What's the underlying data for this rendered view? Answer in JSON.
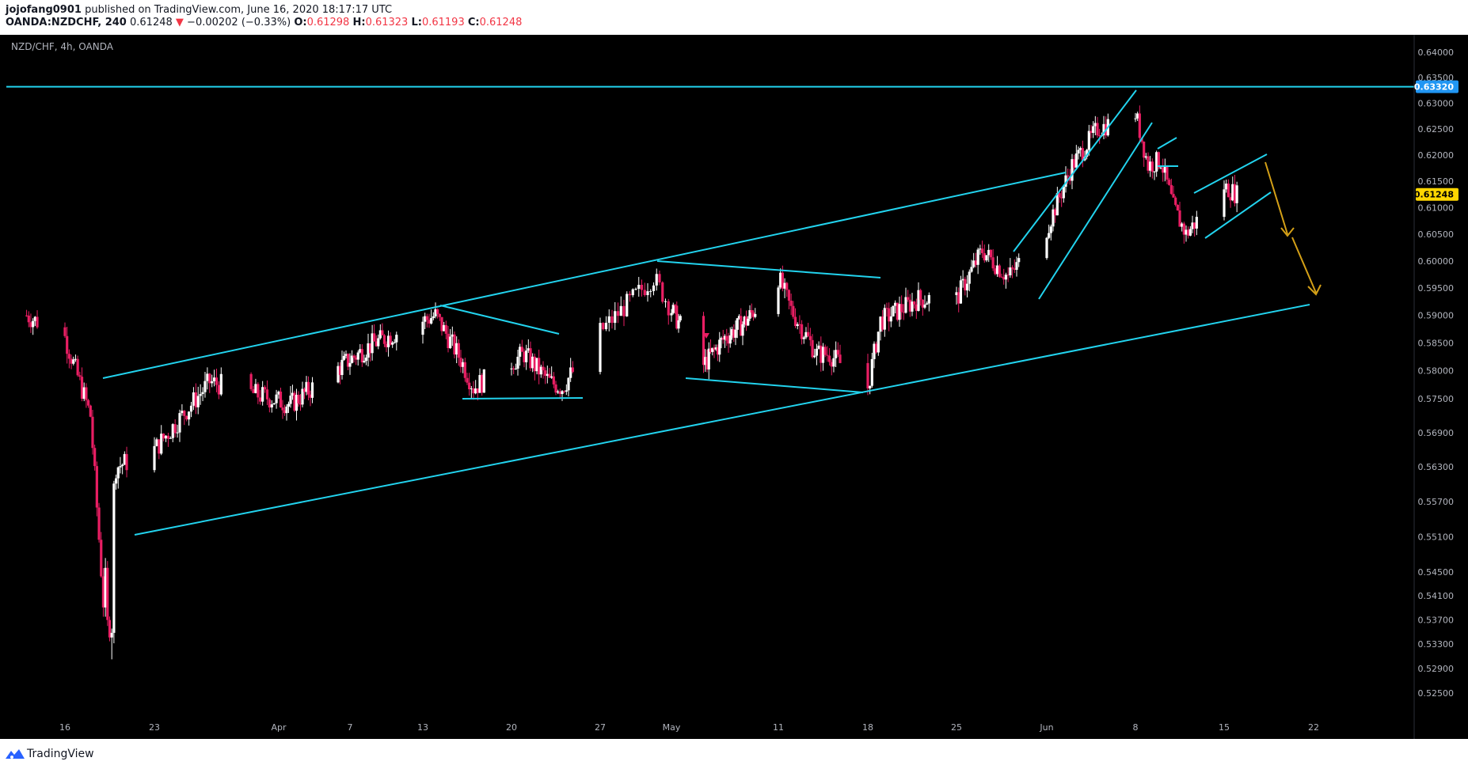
{
  "header": {
    "author": "jojofang0901",
    "published_text": "published on TradingView.com, June 16, 2020 18:17:17 UTC",
    "symbol_line": "OANDA:NZDCHF, 240",
    "last_price": "0.61248",
    "change_arrow": "▼",
    "change": "−0.00202 (−0.33%)",
    "open_label": "O:",
    "open": "0.61298",
    "high_label": "H:",
    "high": "0.61323",
    "low_label": "L:",
    "low": "0.61193",
    "close_label": "C:",
    "close": "0.61248"
  },
  "chart_title": "NZD/CHF, 4h, OANDA",
  "footer": {
    "brand": "TradingView"
  },
  "colors": {
    "background": "#000000",
    "drawing": "#22d3ee",
    "projection": "#d4a017",
    "up_candle": "#ffffff",
    "down_candle": "#e91e63",
    "current_price_bg": "#ffd600",
    "hline_tag_bg": "#2196f3"
  },
  "chart_data": {
    "type": "candlestick",
    "symbol": "NZD/CHF",
    "timeframe": "4h",
    "y_ticks": [
      "0.64000",
      "0.63500",
      "0.63000",
      "0.62500",
      "0.62000",
      "0.61500",
      "0.61000",
      "0.60500",
      "0.60000",
      "0.59500",
      "0.59000",
      "0.58500",
      "0.58000",
      "0.57500",
      "0.56900",
      "0.56300",
      "0.55700",
      "0.55100",
      "0.54500",
      "0.54100",
      "0.53700",
      "0.53300",
      "0.52900",
      "0.52500"
    ],
    "y_scale": "log",
    "ylim": [
      0.5225,
      0.642
    ],
    "x_ticks": [
      "16",
      "23",
      "Apr",
      "7",
      "13",
      "20",
      "27",
      "May",
      "11",
      "18",
      "25",
      "Jun",
      "8",
      "15",
      "22"
    ],
    "horizontal_line": {
      "price": 0.6332,
      "label": "0.63320"
    },
    "current_price": {
      "price": 0.61248,
      "label": "0.61248"
    },
    "approx_close_path": [
      {
        "date": "2020-03-13",
        "close": 0.59
      },
      {
        "date": "2020-03-16",
        "close": 0.586
      },
      {
        "date": "2020-03-17",
        "close": 0.579
      },
      {
        "date": "2020-03-18",
        "close": 0.572
      },
      {
        "date": "2020-03-19",
        "close": 0.54
      },
      {
        "date": "2020-03-20",
        "close": 0.563
      },
      {
        "date": "2020-03-23",
        "close": 0.566
      },
      {
        "date": "2020-03-25",
        "close": 0.572
      },
      {
        "date": "2020-03-27",
        "close": 0.578
      },
      {
        "date": "2020-04-02",
        "close": 0.574
      },
      {
        "date": "2020-04-07",
        "close": 0.582
      },
      {
        "date": "2020-04-09",
        "close": 0.585
      },
      {
        "date": "2020-04-14",
        "close": 0.59
      },
      {
        "date": "2020-04-16",
        "close": 0.582
      },
      {
        "date": "2020-04-17",
        "close": 0.577
      },
      {
        "date": "2020-04-21",
        "close": 0.583
      },
      {
        "date": "2020-04-23",
        "close": 0.578
      },
      {
        "date": "2020-04-24",
        "close": 0.577
      },
      {
        "date": "2020-04-27",
        "close": 0.587
      },
      {
        "date": "2020-04-30",
        "close": 0.597
      },
      {
        "date": "2020-05-01",
        "close": 0.591
      },
      {
        "date": "2020-05-04",
        "close": 0.581
      },
      {
        "date": "2020-05-06",
        "close": 0.586
      },
      {
        "date": "2020-05-08",
        "close": 0.589
      },
      {
        "date": "2020-05-11",
        "close": 0.597
      },
      {
        "date": "2020-05-12",
        "close": 0.591
      },
      {
        "date": "2020-05-14",
        "close": 0.583
      },
      {
        "date": "2020-05-15",
        "close": 0.583
      },
      {
        "date": "2020-05-18",
        "close": 0.577
      },
      {
        "date": "2020-05-19",
        "close": 0.589
      },
      {
        "date": "2020-05-22",
        "close": 0.593
      },
      {
        "date": "2020-05-25",
        "close": 0.593
      },
      {
        "date": "2020-05-27",
        "close": 0.602
      },
      {
        "date": "2020-05-29",
        "close": 0.597
      },
      {
        "date": "2020-06-01",
        "close": 0.606
      },
      {
        "date": "2020-06-03",
        "close": 0.618
      },
      {
        "date": "2020-06-05",
        "close": 0.625
      },
      {
        "date": "2020-06-08",
        "close": 0.628
      },
      {
        "date": "2020-06-09",
        "close": 0.618
      },
      {
        "date": "2020-06-10",
        "close": 0.619
      },
      {
        "date": "2020-06-11",
        "close": 0.61
      },
      {
        "date": "2020-06-12",
        "close": 0.605
      },
      {
        "date": "2020-06-15",
        "close": 0.614
      },
      {
        "date": "2020-06-16",
        "close": 0.61248
      }
    ]
  }
}
